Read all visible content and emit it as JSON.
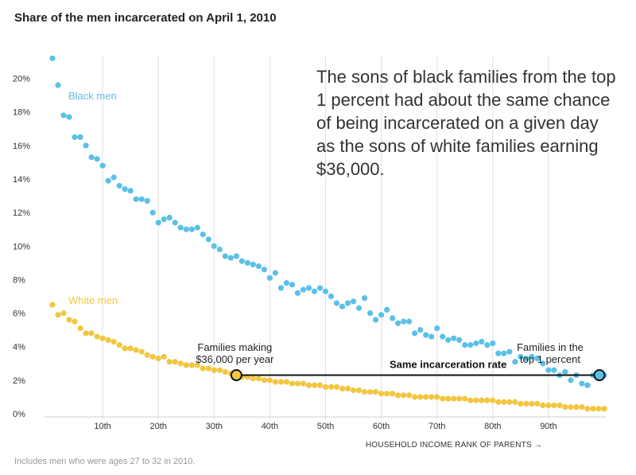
{
  "title": "Share of the men incarcerated on April 1, 2010",
  "footnote": "Includes men who were ages 27 to 32 in 2010.",
  "annotation": "The sons of black families from the top 1 percent had about the same chance of being incarcerated on a given day as the sons of white families earning $36,000.",
  "colors": {
    "black_men": "#5bc0e8",
    "white_men": "#f2c641",
    "grid": "#e2e2e2",
    "line": "#111111"
  },
  "chart_data": {
    "type": "scatter",
    "title": "Share of the men incarcerated on April 1, 2010",
    "xlabel": "HOUSEHOLD INCOME RANK OF PARENTS →",
    "ylabel": "",
    "xlim": [
      0,
      100
    ],
    "ylim": [
      0,
      21.5
    ],
    "x_ticks": [
      10,
      20,
      30,
      40,
      50,
      60,
      70,
      80,
      90
    ],
    "x_tick_labels": [
      "10th",
      "20th",
      "30th",
      "40th",
      "50th",
      "60th",
      "70th",
      "80th",
      "90th"
    ],
    "y_ticks": [
      0,
      2,
      4,
      6,
      8,
      10,
      12,
      14,
      16,
      18,
      20
    ],
    "y_tick_labels": [
      "0%",
      "2%",
      "4%",
      "6%",
      "8%",
      "10%",
      "12%",
      "14%",
      "16%",
      "18%",
      "20%"
    ],
    "grid": true,
    "series": [
      {
        "name": "Black men",
        "x": [
          1,
          2,
          3,
          4,
          5,
          6,
          7,
          8,
          9,
          10,
          11,
          12,
          13,
          14,
          15,
          16,
          17,
          18,
          19,
          20,
          21,
          22,
          23,
          24,
          25,
          26,
          27,
          28,
          29,
          30,
          31,
          32,
          33,
          34,
          35,
          36,
          37,
          38,
          39,
          40,
          41,
          42,
          43,
          44,
          45,
          46,
          47,
          48,
          49,
          50,
          51,
          52,
          53,
          54,
          55,
          56,
          57,
          58,
          59,
          60,
          61,
          62,
          63,
          64,
          65,
          66,
          67,
          68,
          69,
          70,
          71,
          72,
          73,
          74,
          75,
          76,
          77,
          78,
          79,
          80,
          81,
          82,
          83,
          84,
          85,
          86,
          87,
          88,
          89,
          90,
          91,
          92,
          93,
          94,
          95,
          96,
          97,
          98,
          99,
          100
        ],
        "y": [
          21.2,
          19.6,
          17.8,
          17.7,
          16.5,
          16.5,
          16.0,
          15.3,
          15.2,
          14.8,
          13.9,
          14.1,
          13.6,
          13.4,
          13.3,
          12.8,
          12.8,
          12.7,
          12.0,
          11.4,
          11.6,
          11.7,
          11.4,
          11.1,
          11.0,
          11.0,
          11.1,
          10.7,
          10.4,
          10.0,
          9.8,
          9.4,
          9.3,
          9.4,
          9.1,
          9.0,
          8.9,
          8.8,
          8.6,
          8.1,
          8.4,
          7.5,
          7.8,
          7.7,
          7.2,
          7.4,
          7.5,
          7.3,
          7.5,
          7.3,
          7.0,
          6.6,
          6.4,
          6.6,
          6.7,
          6.3,
          6.9,
          6.0,
          5.6,
          5.9,
          6.2,
          5.7,
          5.4,
          5.5,
          5.5,
          4.8,
          5.0,
          4.7,
          4.6,
          5.1,
          4.6,
          4.4,
          4.5,
          4.4,
          4.1,
          4.1,
          4.2,
          4.3,
          4.1,
          4.2,
          3.6,
          3.6,
          3.7,
          3.1,
          3.4,
          3.3,
          3.4,
          3.3,
          3.0,
          2.6,
          2.6,
          2.3,
          2.5,
          2.0,
          2.3,
          1.8,
          1.7,
          2.3,
          2.3,
          2.3
        ]
      },
      {
        "name": "White men",
        "x": [
          1,
          2,
          3,
          4,
          5,
          6,
          7,
          8,
          9,
          10,
          11,
          12,
          13,
          14,
          15,
          16,
          17,
          18,
          19,
          20,
          21,
          22,
          23,
          24,
          25,
          26,
          27,
          28,
          29,
          30,
          31,
          32,
          33,
          34,
          35,
          36,
          37,
          38,
          39,
          40,
          41,
          42,
          43,
          44,
          45,
          46,
          47,
          48,
          49,
          50,
          51,
          52,
          53,
          54,
          55,
          56,
          57,
          58,
          59,
          60,
          61,
          62,
          63,
          64,
          65,
          66,
          67,
          68,
          69,
          70,
          71,
          72,
          73,
          74,
          75,
          76,
          77,
          78,
          79,
          80,
          81,
          82,
          83,
          84,
          85,
          86,
          87,
          88,
          89,
          90,
          91,
          92,
          93,
          94,
          95,
          96,
          97,
          98,
          99,
          100
        ],
        "y": [
          6.5,
          5.9,
          6.0,
          5.6,
          5.5,
          5.1,
          4.8,
          4.8,
          4.6,
          4.5,
          4.4,
          4.3,
          4.1,
          3.9,
          3.9,
          3.8,
          3.7,
          3.5,
          3.4,
          3.3,
          3.4,
          3.1,
          3.1,
          3.0,
          2.9,
          2.9,
          2.9,
          2.7,
          2.7,
          2.6,
          2.6,
          2.5,
          2.4,
          2.3,
          2.2,
          2.2,
          2.1,
          2.1,
          2.0,
          2.0,
          1.9,
          1.9,
          1.9,
          1.8,
          1.8,
          1.8,
          1.7,
          1.7,
          1.7,
          1.6,
          1.6,
          1.6,
          1.5,
          1.5,
          1.4,
          1.4,
          1.3,
          1.3,
          1.3,
          1.2,
          1.2,
          1.2,
          1.1,
          1.1,
          1.1,
          1.0,
          1.0,
          1.0,
          1.0,
          1.0,
          0.9,
          0.9,
          0.9,
          0.9,
          0.9,
          0.8,
          0.8,
          0.8,
          0.8,
          0.8,
          0.7,
          0.7,
          0.7,
          0.7,
          0.6,
          0.6,
          0.6,
          0.6,
          0.5,
          0.5,
          0.5,
          0.5,
          0.4,
          0.4,
          0.4,
          0.4,
          0.3,
          0.3,
          0.3,
          0.3
        ]
      }
    ],
    "annotations": [
      {
        "text_lines": [
          "Families making",
          "$36,000 per year"
        ],
        "x": 34,
        "y": 2.3
      },
      {
        "text_lines": [
          "Families in the",
          "top 1 percent"
        ],
        "x": 100,
        "y": 2.3
      },
      {
        "text": "Same incarceration rate",
        "y": 2.3,
        "x_from": 34,
        "x_to": 100
      }
    ]
  }
}
